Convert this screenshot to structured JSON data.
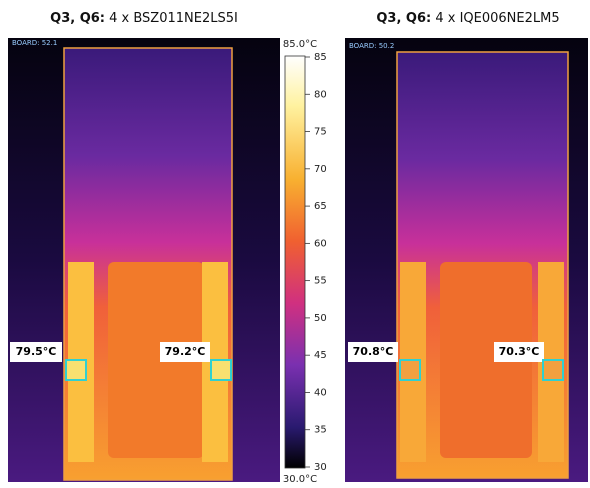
{
  "panels": [
    {
      "title_bold": "Q3, Q6:",
      "title_rest": "4 x BSZ011NE2LS5I",
      "board": "BOARD: 52.1",
      "spots": [
        "79.5°C",
        "79.2°C"
      ]
    },
    {
      "title_bold": "Q3, Q6:",
      "title_rest": "4 x IQE006NE2LM5",
      "board": "BOARD: 50.2",
      "spots": [
        "70.8°C",
        "70.3°C"
      ]
    }
  ],
  "colorbar": {
    "max_label": "85.0°C",
    "min_label": "30.0°C",
    "lim": [
      30,
      85
    ],
    "ticks": [
      85,
      80,
      75,
      70,
      65,
      60,
      55,
      50,
      45,
      40,
      35,
      30
    ]
  }
}
